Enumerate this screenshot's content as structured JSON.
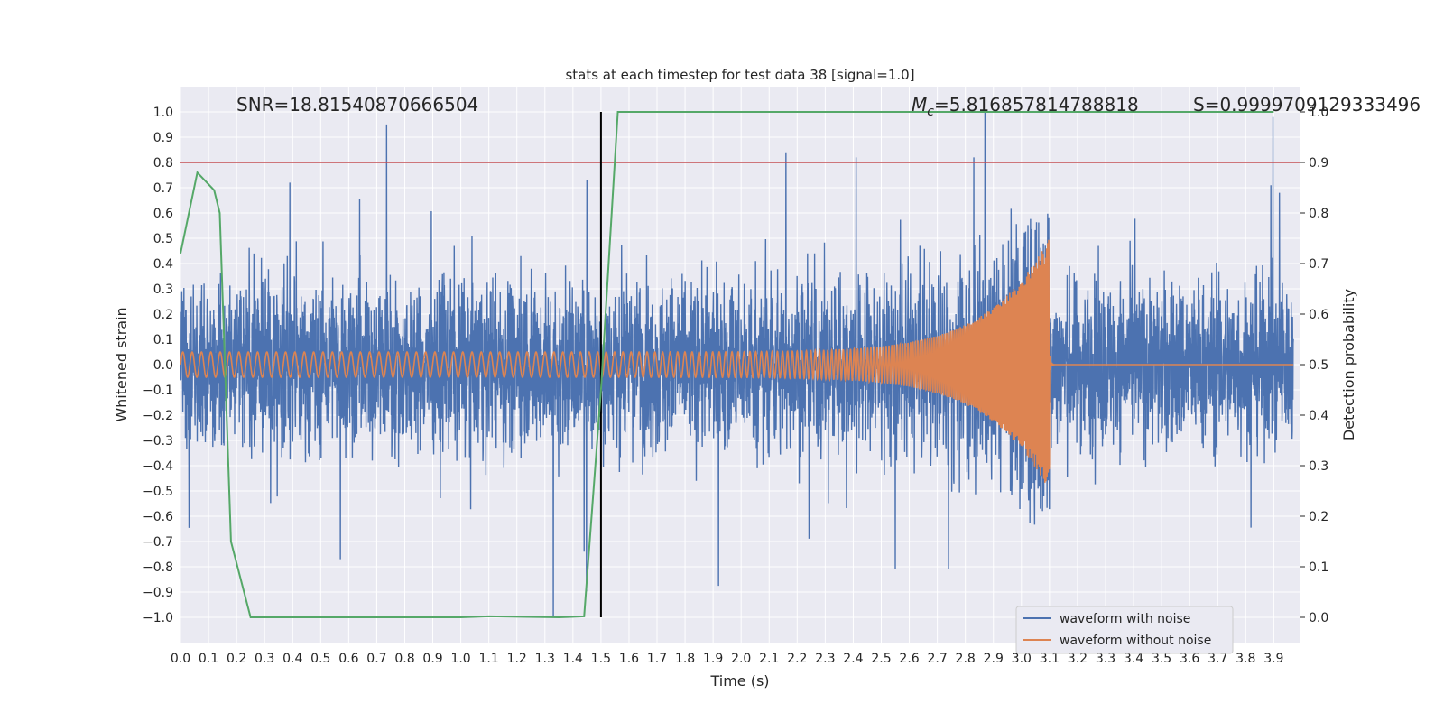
{
  "chart_data": {
    "type": "line",
    "title": "stats at each timestep for test data 38 [signal=1.0]",
    "xlabel": "Time (s)",
    "ylabel": "Whitened strain",
    "y2label": "Detection probability",
    "xlim": [
      0.0,
      4.0
    ],
    "ylim": [
      -1.1,
      1.1
    ],
    "y2lim": [
      -0.05,
      1.0
    ],
    "grid": true,
    "x_ticks": [
      "0.0",
      "0.1",
      "0.2",
      "0.3",
      "0.4",
      "0.5",
      "0.6",
      "0.7",
      "0.8",
      "0.9",
      "1.0",
      "1.1",
      "1.2",
      "1.3",
      "1.4",
      "1.5",
      "1.6",
      "1.7",
      "1.8",
      "1.9",
      "2.0",
      "2.1",
      "2.2",
      "2.3",
      "2.4",
      "2.5",
      "2.6",
      "2.7",
      "2.8",
      "2.9",
      "3.0",
      "3.1",
      "3.2",
      "3.3",
      "3.4",
      "3.5",
      "3.6",
      "3.7",
      "3.8",
      "3.9"
    ],
    "y_ticks": [
      "1.0",
      "0.9",
      "0.8",
      "0.7",
      "0.6",
      "0.5",
      "0.4",
      "0.3",
      "0.2",
      "0.1",
      "0.0",
      "−0.1",
      "−0.2",
      "−0.3",
      "−0.4",
      "−0.5",
      "−0.6",
      "−0.7",
      "−0.8",
      "−0.9",
      "−1.0"
    ],
    "y2_ticks": [
      "1.0",
      "0.9",
      "0.8",
      "0.7",
      "0.6",
      "0.5",
      "0.4",
      "0.3",
      "0.2",
      "0.1",
      "0.0"
    ],
    "annotations": {
      "snr": "SNR=18.81540870666504",
      "mc_symbol": "M",
      "mc_sub": "c",
      "mc_value": "=5.816857814788818",
      "s_text": "S=0.9999709129333496"
    },
    "threshold": {
      "y": 0.8,
      "color": "#c44e52"
    },
    "marker_line": {
      "x": 1.5,
      "y_from": -1.0,
      "y_to": 1.0,
      "color": "#000000"
    },
    "series": [
      {
        "name": "waveform with noise",
        "color": "#4c72b0",
        "description": "noisy whitened strain, amplitude mostly within ±0.5 with spikes",
        "spikes": [
          [
            1.33,
            -1.0
          ],
          [
            2.87,
            1.0
          ],
          [
            2.16,
            0.84
          ],
          [
            2.41,
            0.82
          ],
          [
            2.83,
            0.82
          ],
          [
            2.74,
            -0.81
          ],
          [
            2.55,
            -0.81
          ],
          [
            0.39,
            0.72
          ],
          [
            0.57,
            -0.77
          ],
          [
            1.44,
            -0.74
          ],
          [
            1.45,
            0.73
          ],
          [
            3.89,
            0.71
          ]
        ]
      },
      {
        "name": "waveform without noise",
        "color": "#dd8452",
        "description": "chirp: amplitude 0.05 rising to ~0.5 at merger t≈3.1 s, then near zero",
        "start_amp": 0.05,
        "peak_amp": 0.5,
        "merger_t": 3.1,
        "start_freq_hz": 30,
        "end_freq_hz": 260
      },
      {
        "name": "Detection probability",
        "axis": "right",
        "color": "#55a868",
        "x": [
          0.0,
          0.06,
          0.12,
          0.14,
          0.18,
          0.25,
          0.3,
          1.0,
          1.1,
          1.35,
          1.44,
          1.5,
          1.56,
          3.9
        ],
        "values": [
          0.72,
          0.88,
          0.845,
          0.8,
          0.15,
          0.0,
          0.0,
          0.0,
          0.002,
          0.0,
          0.002,
          0.45,
          1.0,
          1.0
        ]
      }
    ],
    "legend": {
      "placement": "lower-right",
      "entries": [
        "waveform with noise",
        "waveform without noise"
      ]
    }
  }
}
